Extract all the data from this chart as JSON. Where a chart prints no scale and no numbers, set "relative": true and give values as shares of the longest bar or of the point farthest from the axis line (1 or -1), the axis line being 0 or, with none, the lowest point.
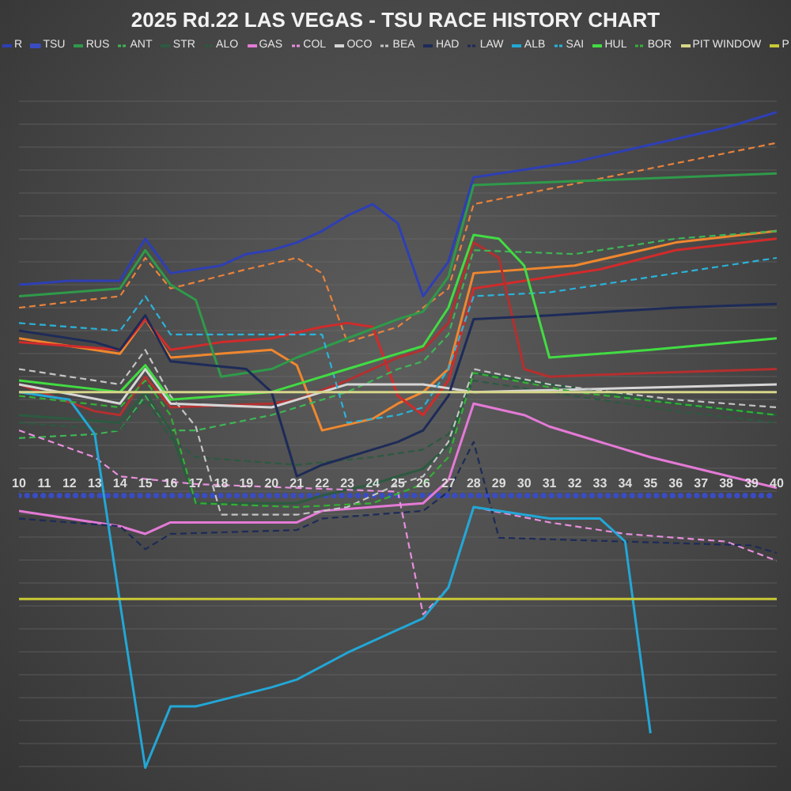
{
  "chart_data": {
    "type": "line",
    "title": "2025 Rd.22 LAS VEGAS - TSU RACE HISTORY CHART",
    "relative": true,
    "legend": "top",
    "grid": "y",
    "xlim": [
      10,
      40
    ],
    "xticks": [
      10,
      11,
      12,
      13,
      14,
      15,
      16,
      17,
      18,
      19,
      20,
      21,
      22,
      23,
      24,
      25,
      26,
      27,
      28,
      29,
      30,
      31,
      32,
      33,
      34,
      35,
      36,
      37,
      38,
      39,
      40
    ],
    "series": [
      {
        "color": "#f0872e",
        "x": [
          10,
          14,
          15,
          16,
          20,
          21,
          22,
          24,
          25,
          26,
          27,
          28,
          32,
          36,
          40
        ],
        "values": [
          0.41,
          0.37,
          0.46,
          0.36,
          0.38,
          0.34,
          0.17,
          0.2,
          0.24,
          0.27,
          0.33,
          0.58,
          0.6,
          0.66,
          0.69
        ]
      },
      {
        "color": "#e8823c",
        "line_style": "dashed",
        "x": [
          10,
          14,
          15,
          16,
          19,
          21,
          22,
          23,
          25,
          26,
          27,
          28,
          34,
          40
        ],
        "values": [
          0.49,
          0.52,
          0.62,
          0.54,
          0.59,
          0.62,
          0.58,
          0.4,
          0.44,
          0.49,
          0.54,
          0.76,
          0.84,
          0.92
        ]
      },
      {
        "color": "#d12b2b",
        "x": [
          10,
          14,
          15,
          16,
          18,
          20,
          22,
          23,
          24,
          25,
          26,
          27,
          28,
          30,
          33,
          36,
          40
        ],
        "values": [
          0.4,
          0.38,
          0.46,
          0.38,
          0.4,
          0.41,
          0.44,
          0.45,
          0.44,
          0.26,
          0.21,
          0.3,
          0.54,
          0.56,
          0.59,
          0.64,
          0.67
        ]
      },
      {
        "color": "#b52f2f",
        "x": [
          10,
          13,
          14,
          15,
          16,
          20,
          21,
          23,
          25,
          26,
          27,
          28,
          29,
          30,
          31,
          35,
          40
        ],
        "values": [
          0.29,
          0.22,
          0.21,
          0.31,
          0.23,
          0.24,
          0.25,
          0.3,
          0.36,
          0.38,
          0.45,
          0.66,
          0.62,
          0.33,
          0.31,
          0.32,
          0.33
        ]
      },
      {
        "name": "R",
        "color": "#2e3fb5",
        "x": [
          10,
          12,
          14,
          15,
          16,
          17,
          18,
          19,
          20,
          21,
          22,
          23,
          24,
          25,
          26,
          27,
          28,
          30,
          32,
          34,
          36,
          38,
          40
        ],
        "values": [
          0.55,
          0.56,
          0.56,
          0.67,
          0.58,
          0.59,
          0.6,
          0.63,
          0.64,
          0.66,
          0.69,
          0.73,
          0.76,
          0.71,
          0.52,
          0.61,
          0.83,
          0.85,
          0.87,
          0.9,
          0.93,
          0.96,
          1.0
        ]
      },
      {
        "name": "TSU",
        "color": "#3a4cc4",
        "line_style": "dotted",
        "x": [
          10,
          40
        ],
        "values": [
          0,
          0
        ]
      },
      {
        "name": "RUS",
        "color": "#2f9a4a",
        "x": [
          10,
          14,
          15,
          16,
          17,
          18,
          20,
          21,
          23,
          25,
          26,
          27,
          28,
          32,
          36,
          40
        ],
        "values": [
          0.52,
          0.54,
          0.64,
          0.55,
          0.51,
          0.31,
          0.33,
          0.36,
          0.41,
          0.46,
          0.48,
          0.57,
          0.81,
          0.82,
          0.83,
          0.84
        ]
      },
      {
        "name": "ANT",
        "color": "#3fb556",
        "line_style": "dashed",
        "x": [
          10,
          13,
          14,
          15,
          16,
          17,
          20,
          21,
          23,
          25,
          26,
          27,
          28,
          32,
          36,
          40
        ],
        "values": [
          0.15,
          0.16,
          0.17,
          0.26,
          0.17,
          0.17,
          0.21,
          0.23,
          0.27,
          0.33,
          0.35,
          0.42,
          0.64,
          0.63,
          0.67,
          0.69
        ]
      },
      {
        "name": "STR",
        "color": "#2c5a40",
        "x": [
          10,
          14,
          15,
          16,
          17,
          21,
          22,
          24,
          25,
          26,
          27,
          28,
          32,
          36,
          40
        ],
        "values": [
          0.21,
          0.19,
          0.27,
          0.17,
          -0.02,
          -0.02,
          0.0,
          0.03,
          0.05,
          0.07,
          0.13,
          0.32,
          0.28,
          0.24,
          0.21
        ]
      },
      {
        "name": "ALO",
        "color": "#2c5a40",
        "line_style": "dashed",
        "x": [
          10,
          14,
          15,
          16,
          17,
          21,
          24,
          26,
          27,
          28,
          32,
          36,
          40
        ],
        "values": [
          0.19,
          0.17,
          0.25,
          0.15,
          0.1,
          0.08,
          0.1,
          0.12,
          0.16,
          0.3,
          0.26,
          0.22,
          0.19
        ]
      },
      {
        "name": "GAS",
        "color": "#e47ad6",
        "x": [
          10,
          14,
          15,
          16,
          21,
          22,
          24,
          26,
          27,
          28,
          30,
          31,
          35,
          40
        ],
        "values": [
          -0.04,
          -0.08,
          -0.1,
          -0.07,
          -0.07,
          -0.04,
          -0.03,
          -0.02,
          0.04,
          0.24,
          0.21,
          0.18,
          0.1,
          0.02
        ]
      },
      {
        "name": "COL",
        "color": "#e68fdc",
        "line_style": "dashed",
        "x": [
          10,
          13,
          14,
          17,
          21,
          25,
          26,
          27,
          28,
          31,
          34,
          38,
          40
        ],
        "values": [
          0.17,
          0.1,
          0.05,
          0.03,
          0.02,
          0.01,
          -0.31,
          -0.24,
          -0.03,
          -0.07,
          -0.1,
          -0.12,
          -0.17
        ]
      },
      {
        "name": "OCO",
        "color": "#d6d6d6",
        "x": [
          10,
          14,
          15,
          16,
          20,
          21,
          23,
          26,
          28,
          34,
          40
        ],
        "values": [
          0.29,
          0.24,
          0.33,
          0.24,
          0.23,
          0.25,
          0.29,
          0.29,
          0.27,
          0.28,
          0.29
        ]
      },
      {
        "name": "BEA",
        "color": "#c4c4c4",
        "line_style": "dashed",
        "x": [
          10,
          14,
          15,
          16,
          17,
          18,
          21,
          23,
          25,
          26,
          27,
          28,
          31,
          36,
          40
        ],
        "values": [
          0.33,
          0.29,
          0.38,
          0.26,
          0.18,
          -0.05,
          -0.05,
          -0.03,
          0.03,
          0.05,
          0.14,
          0.33,
          0.29,
          0.25,
          0.23
        ]
      },
      {
        "name": "HAD",
        "color": "#1d2b58",
        "x": [
          10,
          13,
          14,
          15,
          16,
          19,
          20,
          21,
          22,
          24,
          25,
          26,
          27,
          28,
          31,
          36,
          40
        ],
        "values": [
          0.43,
          0.4,
          0.38,
          0.47,
          0.35,
          0.33,
          0.27,
          0.05,
          0.08,
          0.12,
          0.14,
          0.17,
          0.26,
          0.46,
          0.47,
          0.49,
          0.5
        ]
      },
      {
        "name": "LAW",
        "color": "#1d2b58",
        "line_style": "dashed",
        "x": [
          10,
          14,
          15,
          16,
          21,
          22,
          26,
          27,
          28,
          29,
          34,
          39,
          40
        ],
        "values": [
          -0.06,
          -0.08,
          -0.14,
          -0.1,
          -0.09,
          -0.06,
          -0.04,
          0.01,
          0.14,
          -0.11,
          -0.12,
          -0.13,
          -0.15
        ]
      },
      {
        "name": "ALB",
        "color": "#22a7d6",
        "x": [
          10,
          12,
          13,
          14,
          15,
          16,
          17,
          20,
          21,
          23,
          26,
          27,
          28,
          31,
          33,
          34,
          35
        ],
        "values": [
          0.27,
          0.25,
          0.16,
          -0.28,
          -0.71,
          -0.55,
          -0.55,
          -0.5,
          -0.48,
          -0.41,
          -0.32,
          -0.24,
          -0.03,
          -0.06,
          -0.06,
          -0.12,
          -0.62
        ]
      },
      {
        "name": "SAI",
        "color": "#2bb3da",
        "line_style": "dashed",
        "x": [
          10,
          14,
          15,
          16,
          22,
          23,
          25,
          26,
          27,
          28,
          31,
          34,
          37,
          40
        ],
        "values": [
          0.45,
          0.43,
          0.52,
          0.42,
          0.42,
          0.19,
          0.21,
          0.23,
          0.33,
          0.52,
          0.53,
          0.56,
          0.59,
          0.62
        ]
      },
      {
        "name": "HUL",
        "color": "#42dc42",
        "x": [
          10,
          14,
          15,
          16,
          20,
          21,
          23,
          25,
          26,
          27,
          28,
          29,
          30,
          31,
          35,
          40
        ],
        "values": [
          0.3,
          0.27,
          0.34,
          0.25,
          0.27,
          0.29,
          0.33,
          0.37,
          0.39,
          0.49,
          0.68,
          0.67,
          0.6,
          0.36,
          0.38,
          0.41
        ]
      },
      {
        "name": "BOR",
        "color": "#35b035",
        "line_style": "dashed",
        "x": [
          10,
          14,
          15,
          16,
          17,
          21,
          24,
          26,
          27,
          28,
          32,
          36,
          40
        ],
        "values": [
          0.26,
          0.23,
          0.3,
          0.21,
          -0.02,
          -0.03,
          -0.02,
          0.03,
          0.1,
          0.32,
          0.27,
          0.24,
          0.21
        ]
      },
      {
        "name": "PIT WINDOW",
        "color": "#d6d68a",
        "x": [
          10,
          40
        ],
        "values": [
          0.27,
          0.27
        ]
      },
      {
        "name": "P",
        "color": "#c9c935",
        "x": [
          10,
          40
        ],
        "values": [
          -0.27,
          -0.27
        ]
      }
    ]
  }
}
